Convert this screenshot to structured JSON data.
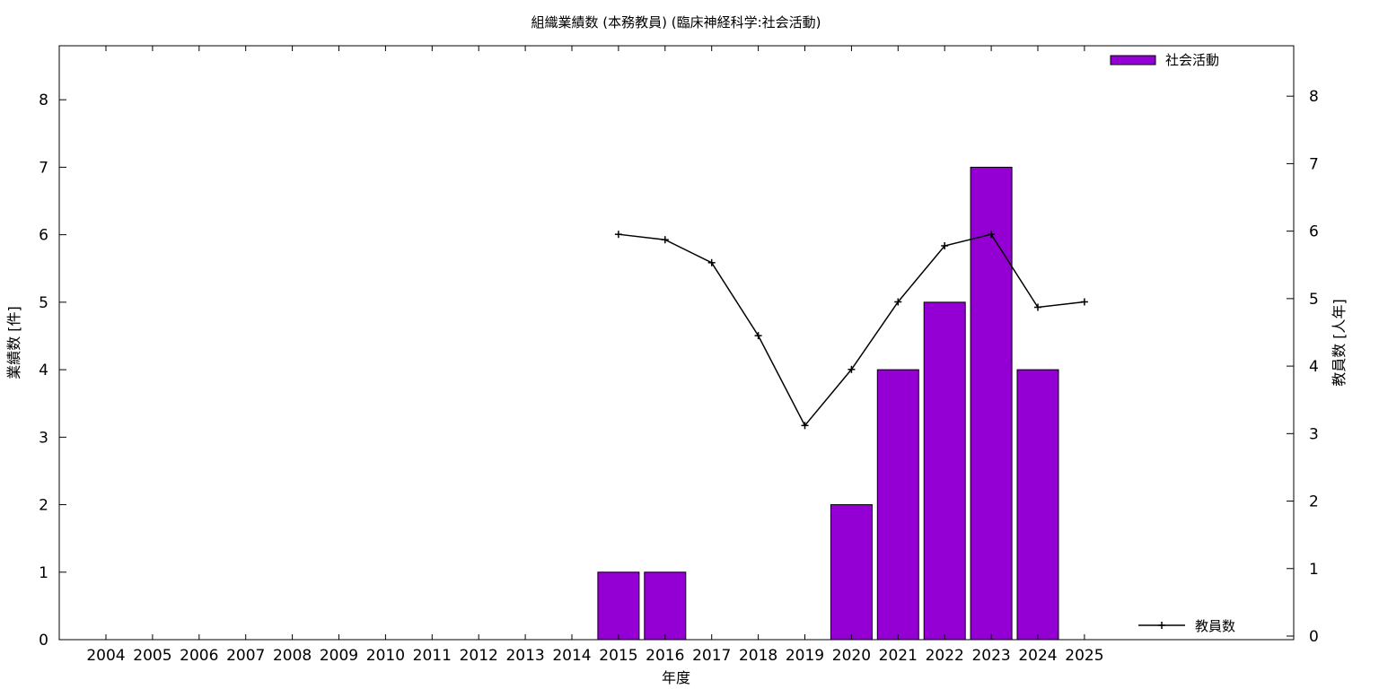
{
  "chart_data": {
    "type": "bar",
    "title": "組織業績数 (本務教員) (臨床神経科学:社会活動)",
    "xlabel": "年度",
    "ylabel": "業績数 [件]",
    "y2label": "教員数 [人年]",
    "categories": [
      "2004",
      "2005",
      "2006",
      "2007",
      "2008",
      "2009",
      "2010",
      "2011",
      "2012",
      "2013",
      "2014",
      "2015",
      "2016",
      "2017",
      "2018",
      "2019",
      "2020",
      "2021",
      "2022",
      "2023",
      "2024",
      "2025"
    ],
    "series": [
      {
        "name": "社会活動",
        "type": "bar",
        "axis": "left",
        "color": "#9400d3",
        "values": [
          0,
          0,
          0,
          0,
          0,
          0,
          0,
          0,
          0,
          0,
          0,
          1,
          1,
          0,
          0,
          0,
          2,
          4,
          5,
          7,
          4,
          0
        ]
      },
      {
        "name": "教員数",
        "type": "line",
        "axis": "right",
        "color": "#000000",
        "marker": "plus",
        "values": [
          null,
          null,
          null,
          null,
          null,
          null,
          null,
          null,
          null,
          null,
          null,
          6.0,
          5.92,
          5.58,
          4.5,
          3.17,
          4.0,
          5.0,
          5.83,
          6.0,
          4.92,
          5.0
        ]
      }
    ],
    "ylim": [
      0,
      8.8
    ],
    "y2lim": [
      0,
      8.8
    ],
    "yticks": [
      0,
      1,
      2,
      3,
      4,
      5,
      6,
      7,
      8
    ],
    "y2ticks": [
      0,
      1,
      2,
      3,
      4,
      5,
      6,
      7,
      8
    ],
    "grid": false,
    "legend": [
      {
        "label": "社会活動",
        "placement": "top-right"
      },
      {
        "label": "教員数",
        "placement": "bottom-right"
      }
    ]
  }
}
